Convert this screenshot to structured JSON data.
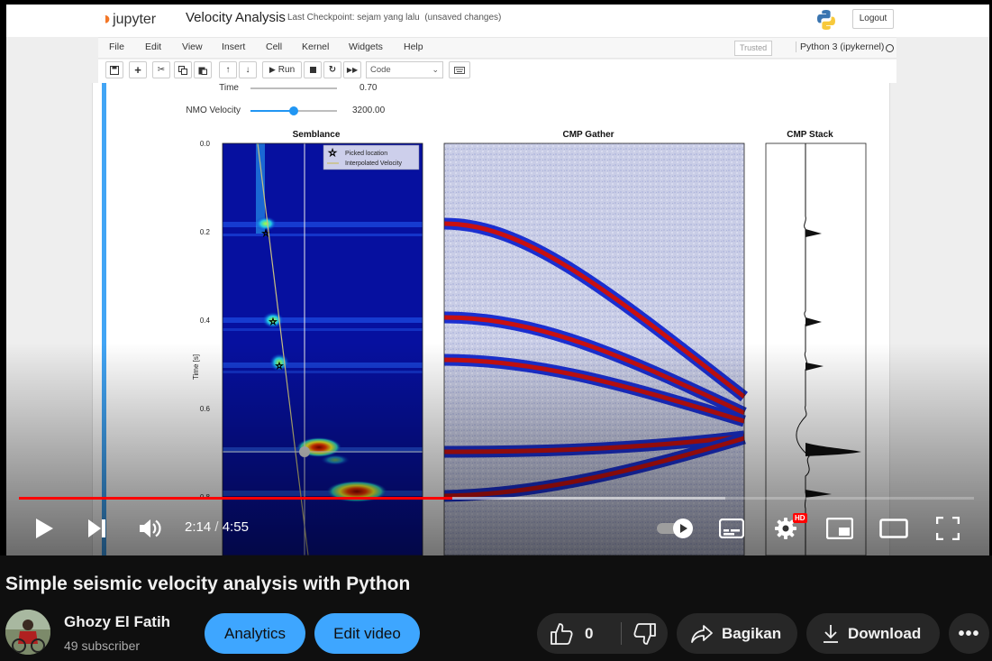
{
  "jupyter": {
    "logo_text": "jupyter",
    "notebook_title": "Velocity Analysis",
    "checkpoint": "Last Checkpoint: sejam yang lalu",
    "status": "(unsaved changes)",
    "logout_label": "Logout",
    "menu": [
      "File",
      "Edit",
      "View",
      "Insert",
      "Cell",
      "Kernel",
      "Widgets",
      "Help"
    ],
    "trusted_label": "Trusted",
    "kernel_label": "Python 3 (ipykernel)",
    "run_label": "Run",
    "cell_type": "Code"
  },
  "widgets": {
    "time_label": "Time",
    "time_value": "0.70",
    "time_fraction": 0.7,
    "nmo_label": "NMO Velocity",
    "nmo_value": "3200.00",
    "nmo_fraction": 0.5
  },
  "figure": {
    "panel_titles": [
      "Semblance",
      "CMP Gather",
      "CMP Stack"
    ],
    "ylabel": "Time [s]",
    "yticks": [
      "0.0",
      "0.2",
      "0.4",
      "0.6",
      "0.8"
    ],
    "legend": [
      "Picked location",
      "Interpolated Velocity"
    ]
  },
  "player": {
    "current_time": "2:14",
    "duration": "4:55",
    "played_fraction": 0.454,
    "buffered_fraction": 0.74,
    "hd_badge": "HD"
  },
  "video": {
    "title": "Simple seismic velocity analysis with Python",
    "channel_name": "Ghozy El Fatih",
    "subscribers": "49 subscriber",
    "analytics_label": "Analytics",
    "edit_label": "Edit video",
    "like_count": "0",
    "share_label": "Bagikan",
    "download_label": "Download"
  },
  "colors": {
    "accent_blue": "#3ea6ff",
    "progress_red": "#ff0000",
    "jupyter_orange": "#f37626"
  }
}
